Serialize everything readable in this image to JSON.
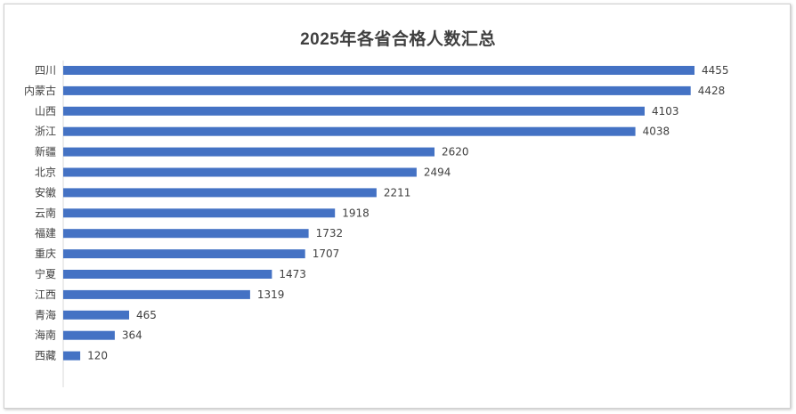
{
  "chart_data": {
    "type": "bar",
    "orientation": "horizontal",
    "title": "2025年各省合格人数汇总",
    "xlabel": "",
    "ylabel": "",
    "xlim": [
      0,
      4500
    ],
    "grid": false,
    "legend": "none",
    "bar_color": "#4472C4",
    "categories": [
      "四川",
      "内蒙古",
      "山西",
      "浙江",
      "新疆",
      "北京",
      "安徽",
      "云南",
      "福建",
      "重庆",
      "宁夏",
      "江西",
      "青海",
      "海南",
      "西藏"
    ],
    "values": [
      4455,
      4428,
      4103,
      4038,
      2620,
      2494,
      2211,
      1918,
      1732,
      1707,
      1473,
      1319,
      465,
      364,
      120
    ],
    "data_labels": [
      "4455",
      "4428",
      "4103",
      "4038",
      "2620",
      "2494",
      "2211",
      "1918",
      "1732",
      "1707",
      "1473",
      "1319",
      "465",
      "364",
      "120"
    ]
  }
}
